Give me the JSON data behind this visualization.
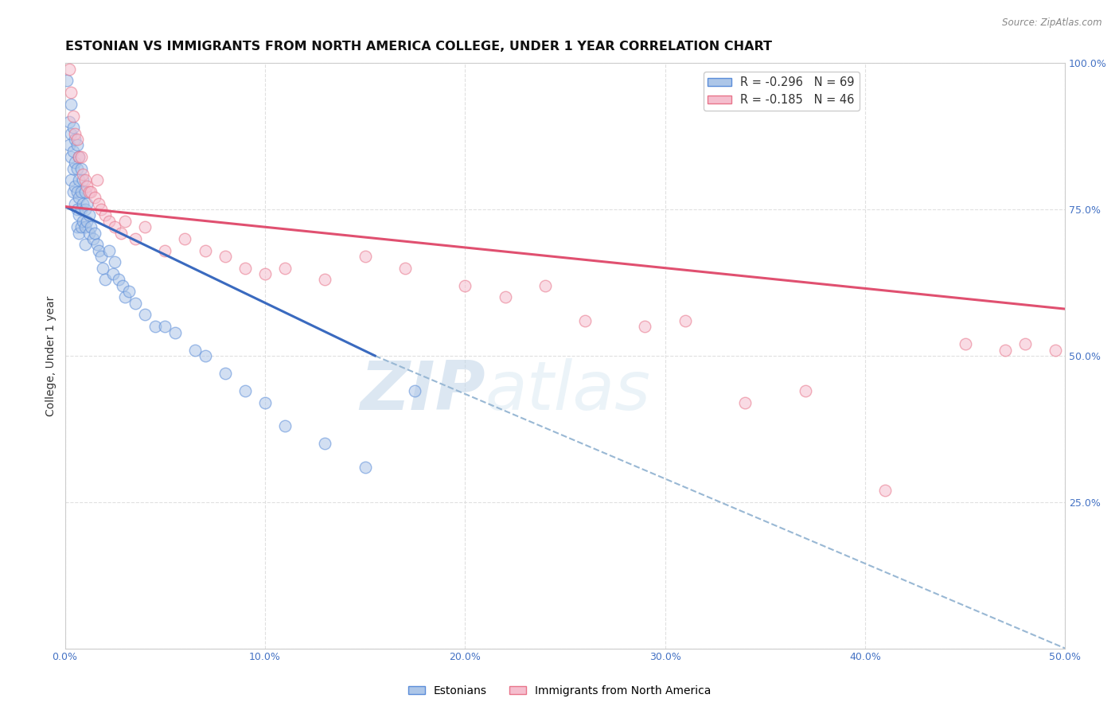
{
  "title": "ESTONIAN VS IMMIGRANTS FROM NORTH AMERICA COLLEGE, UNDER 1 YEAR CORRELATION CHART",
  "source": "Source: ZipAtlas.com",
  "ylabel": "College, Under 1 year",
  "xlim": [
    0.0,
    0.5
  ],
  "ylim": [
    0.0,
    1.0
  ],
  "xticks": [
    0.0,
    0.1,
    0.2,
    0.3,
    0.4,
    0.5
  ],
  "yticks_right": [
    0.25,
    0.5,
    0.75,
    1.0
  ],
  "legend_labels": [
    "R = -0.296   N = 69",
    "R = -0.185   N = 46"
  ],
  "legend_label1": "Estonians",
  "legend_label2": "Immigrants from North America",
  "blue_color": "#adc6e8",
  "pink_color": "#f5bece",
  "blue_edge_color": "#5b8dd9",
  "pink_edge_color": "#e8748a",
  "blue_line_color": "#3a6abf",
  "pink_line_color": "#e05070",
  "dash_line_color": "#99b8d4",
  "watermark": "ZIPatlas",
  "blue_scatter_x": [
    0.001,
    0.002,
    0.002,
    0.003,
    0.003,
    0.003,
    0.003,
    0.004,
    0.004,
    0.004,
    0.004,
    0.005,
    0.005,
    0.005,
    0.005,
    0.006,
    0.006,
    0.006,
    0.006,
    0.006,
    0.007,
    0.007,
    0.007,
    0.007,
    0.007,
    0.008,
    0.008,
    0.008,
    0.008,
    0.009,
    0.009,
    0.009,
    0.01,
    0.01,
    0.01,
    0.01,
    0.011,
    0.011,
    0.012,
    0.012,
    0.013,
    0.014,
    0.015,
    0.016,
    0.017,
    0.018,
    0.019,
    0.02,
    0.022,
    0.024,
    0.025,
    0.027,
    0.029,
    0.03,
    0.032,
    0.035,
    0.04,
    0.045,
    0.05,
    0.055,
    0.065,
    0.07,
    0.08,
    0.09,
    0.1,
    0.11,
    0.13,
    0.15,
    0.175
  ],
  "blue_scatter_y": [
    0.97,
    0.9,
    0.86,
    0.93,
    0.88,
    0.84,
    0.8,
    0.89,
    0.85,
    0.82,
    0.78,
    0.87,
    0.83,
    0.79,
    0.76,
    0.86,
    0.82,
    0.78,
    0.75,
    0.72,
    0.84,
    0.8,
    0.77,
    0.74,
    0.71,
    0.82,
    0.78,
    0.75,
    0.72,
    0.8,
    0.76,
    0.73,
    0.78,
    0.75,
    0.72,
    0.69,
    0.76,
    0.73,
    0.74,
    0.71,
    0.72,
    0.7,
    0.71,
    0.69,
    0.68,
    0.67,
    0.65,
    0.63,
    0.68,
    0.64,
    0.66,
    0.63,
    0.62,
    0.6,
    0.61,
    0.59,
    0.57,
    0.55,
    0.55,
    0.54,
    0.51,
    0.5,
    0.47,
    0.44,
    0.42,
    0.38,
    0.35,
    0.31,
    0.44
  ],
  "pink_scatter_x": [
    0.002,
    0.003,
    0.004,
    0.005,
    0.006,
    0.007,
    0.008,
    0.009,
    0.01,
    0.011,
    0.012,
    0.013,
    0.015,
    0.016,
    0.017,
    0.018,
    0.02,
    0.022,
    0.025,
    0.028,
    0.03,
    0.035,
    0.04,
    0.05,
    0.06,
    0.07,
    0.08,
    0.09,
    0.1,
    0.11,
    0.13,
    0.15,
    0.17,
    0.2,
    0.22,
    0.24,
    0.26,
    0.29,
    0.31,
    0.34,
    0.37,
    0.41,
    0.45,
    0.47,
    0.48,
    0.495
  ],
  "pink_scatter_y": [
    0.99,
    0.95,
    0.91,
    0.88,
    0.87,
    0.84,
    0.84,
    0.81,
    0.8,
    0.79,
    0.78,
    0.78,
    0.77,
    0.8,
    0.76,
    0.75,
    0.74,
    0.73,
    0.72,
    0.71,
    0.73,
    0.7,
    0.72,
    0.68,
    0.7,
    0.68,
    0.67,
    0.65,
    0.64,
    0.65,
    0.63,
    0.67,
    0.65,
    0.62,
    0.6,
    0.62,
    0.56,
    0.55,
    0.56,
    0.42,
    0.44,
    0.27,
    0.52,
    0.51,
    0.52,
    0.51
  ],
  "blue_trend": [
    0.0,
    0.155,
    0.755,
    0.5
  ],
  "pink_trend": [
    0.0,
    0.5,
    0.755,
    0.58
  ],
  "dash_trend": [
    0.155,
    0.5,
    0.5,
    0.0
  ],
  "grid_color": "#dddddd",
  "background_color": "#ffffff",
  "title_fontsize": 11.5,
  "axis_label_fontsize": 10,
  "tick_fontsize": 9,
  "marker_size": 110,
  "marker_alpha": 0.55,
  "marker_linewidth": 1.0
}
